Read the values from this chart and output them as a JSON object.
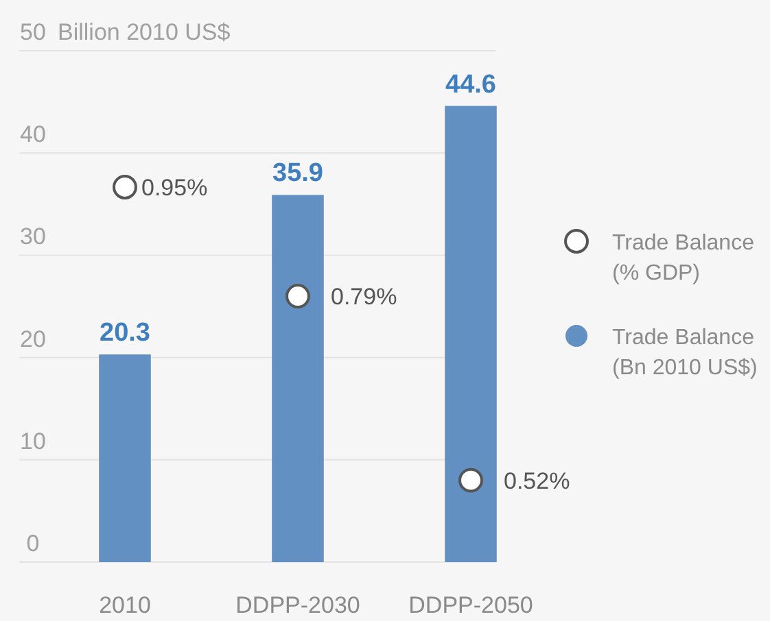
{
  "chart_data": {
    "type": "bar",
    "ylabel": "Billion 2010 US$",
    "categories": [
      "2010",
      "DDPP-2030",
      "DDPP-2050"
    ],
    "series": [
      {
        "name": "Trade Balance (Bn 2010 US$)",
        "color": "#6290c3",
        "values": [
          20.3,
          35.9,
          44.6
        ],
        "value_labels": [
          "20.3",
          "35.9",
          "44.6"
        ]
      },
      {
        "type": "scatter",
        "name": "Trade Balance (% GDP)",
        "color": "#ffffff",
        "axis": "y2",
        "values": [
          0.95,
          0.79,
          0.52
        ],
        "value_labels": [
          "0.95%",
          "0.79%",
          "0.52%"
        ]
      }
    ],
    "ylim": [
      0,
      50
    ],
    "yticks": [
      0,
      10,
      20,
      30,
      40,
      50
    ],
    "y2lim": [
      0.4,
      1.15
    ],
    "tick_labels": "xy",
    "grid": "y",
    "legend": "right",
    "marker": "circle"
  }
}
